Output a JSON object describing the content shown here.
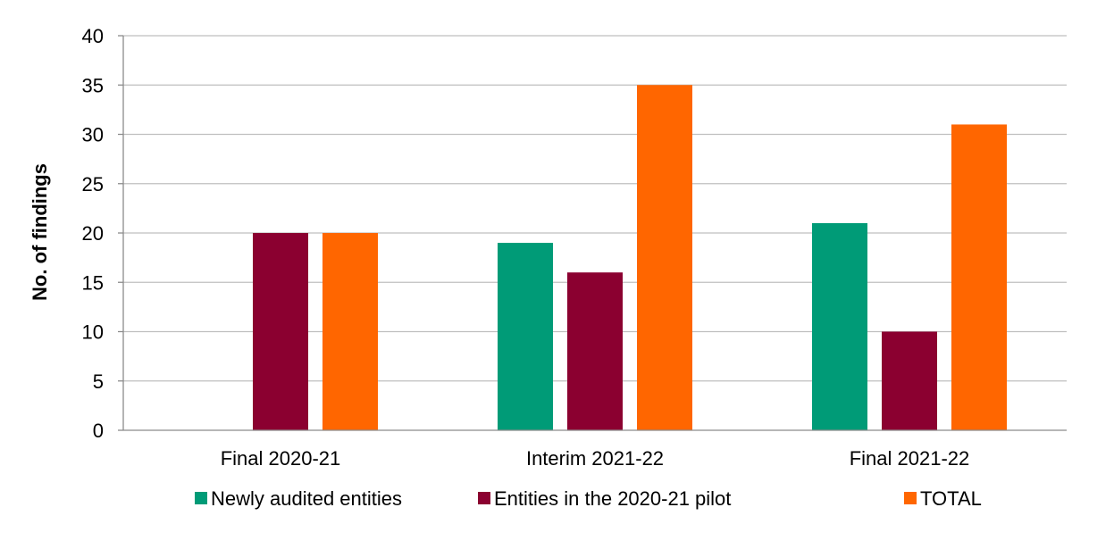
{
  "chart_data": {
    "type": "bar",
    "categories": [
      "Final 2020-21",
      "Interim 2021-22",
      "Final 2021-22"
    ],
    "series": [
      {
        "name": "Newly audited entities",
        "color": "#009B77",
        "values": [
          0,
          19,
          21
        ]
      },
      {
        "name": "Entities in the 2020-21 pilot",
        "color": "#8B0030",
        "values": [
          20,
          16,
          10
        ]
      },
      {
        "name": "TOTAL",
        "color": "#FF6600",
        "values": [
          20,
          35,
          31
        ]
      }
    ],
    "title": "",
    "xlabel": "",
    "ylabel": "No. of findings",
    "ylim": [
      0,
      40
    ],
    "yticks": [
      0,
      5,
      10,
      15,
      20,
      25,
      30,
      35,
      40
    ],
    "grid": true,
    "legend_position": "bottom"
  }
}
